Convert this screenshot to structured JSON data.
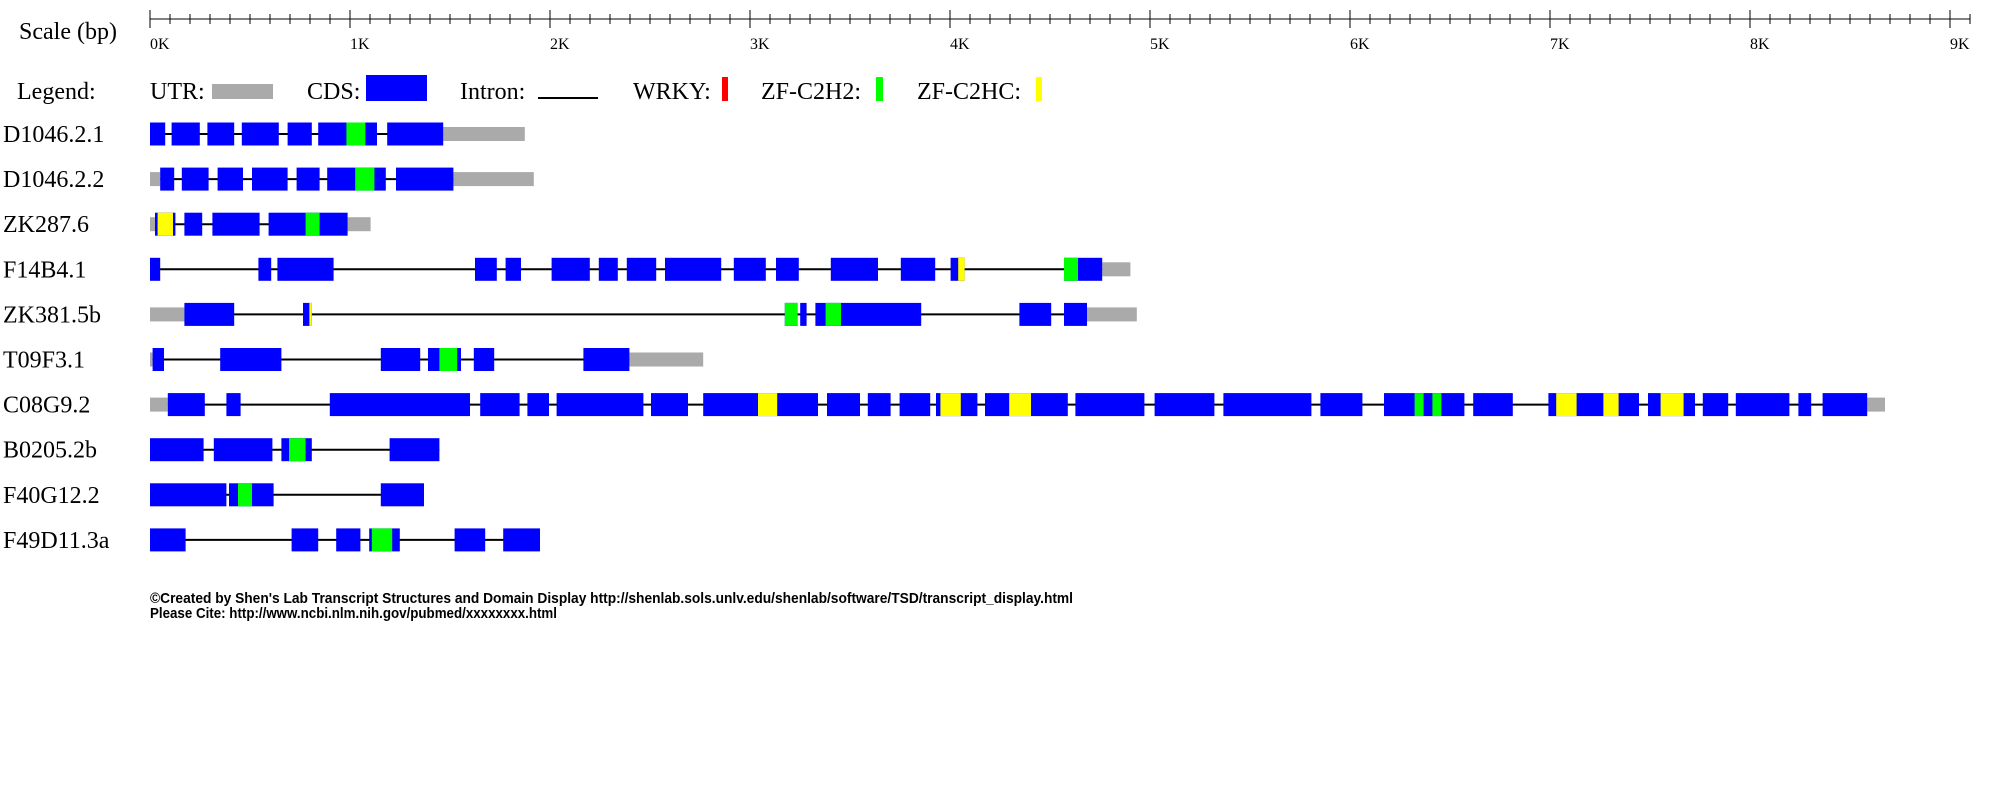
{
  "scale": {
    "label": "Scale (bp)",
    "xlim": [
      0,
      9100
    ],
    "minor_tick_step": 100,
    "ticks": [
      {
        "value": 0,
        "label": "0K"
      },
      {
        "value": 1000,
        "label": "1K"
      },
      {
        "value": 2000,
        "label": "2K"
      },
      {
        "value": 3000,
        "label": "3K"
      },
      {
        "value": 4000,
        "label": "4K"
      },
      {
        "value": 5000,
        "label": "5K"
      },
      {
        "value": 6000,
        "label": "6K"
      },
      {
        "value": 7000,
        "label": "7K"
      },
      {
        "value": 8000,
        "label": "8K"
      },
      {
        "value": 9000,
        "label": "9K"
      }
    ]
  },
  "legend": {
    "title": "Legend:",
    "items": [
      {
        "label": "UTR:",
        "color": "#aaaaaa",
        "shape": "box"
      },
      {
        "label": "CDS:",
        "color": "#0000ff",
        "shape": "box"
      },
      {
        "label": "Intron:",
        "color": "#000000",
        "shape": "line"
      },
      {
        "label": "WRKY:",
        "color": "#ff0000",
        "shape": "box"
      },
      {
        "label": "ZF-C2H2:",
        "color": "#00ff00",
        "shape": "box"
      },
      {
        "label": "ZF-C2HC:",
        "color": "#ffff00",
        "shape": "box"
      }
    ]
  },
  "transcripts": [
    {
      "name": "D1046.2.1",
      "utr": [
        [
          1466,
          1874
        ]
      ],
      "cds": [
        [
          0,
          76
        ],
        [
          108,
          249
        ],
        [
          287,
          421
        ],
        [
          459,
          644
        ],
        [
          688,
          809
        ],
        [
          841,
          1135
        ],
        [
          1186,
          1466
        ]
      ],
      "zf_c2h2": [
        [
          982,
          1077
        ]
      ]
    },
    {
      "name": "D1046.2.2",
      "utr": [
        [
          0,
          51
        ],
        [
          1517,
          1919
        ]
      ],
      "cds": [
        [
          51,
          121
        ],
        [
          159,
          293
        ],
        [
          338,
          465
        ],
        [
          510,
          688
        ],
        [
          733,
          848
        ],
        [
          886,
          1179
        ],
        [
          1230,
          1517
        ]
      ],
      "zf_c2h2": [
        [
          1026,
          1122
        ]
      ]
    },
    {
      "name": "ZK287.6",
      "utr": [
        [
          0,
          25
        ],
        [
          988,
          1103
        ]
      ],
      "cds": [
        [
          25,
          127
        ],
        [
          172,
          261
        ],
        [
          312,
          548
        ],
        [
          593,
          988
        ]
      ],
      "zf_c2h2": [
        [
          778,
          848
        ]
      ],
      "zf_c2hc": [
        [
          38,
          115
        ]
      ]
    },
    {
      "name": "F14B4.1",
      "utr": [
        [
          4761,
          4902
        ]
      ],
      "cds": [
        [
          0,
          51
        ],
        [
          542,
          606
        ],
        [
          637,
          918
        ],
        [
          1625,
          1734
        ],
        [
          1778,
          1855
        ],
        [
          2008,
          2199
        ],
        [
          2244,
          2339
        ],
        [
          2384,
          2531
        ],
        [
          2575,
          2856
        ],
        [
          2919,
          3079
        ],
        [
          3130,
          3244
        ],
        [
          3404,
          3640
        ],
        [
          3754,
          3926
        ],
        [
          4003,
          4073
        ],
        [
          4570,
          4761
        ]
      ],
      "zf_c2h2": [
        [
          4570,
          4640
        ]
      ],
      "zf_c2hc": [
        [
          4041,
          4073
        ]
      ]
    },
    {
      "name": "ZK381.5b",
      "utr": [
        [
          0,
          172
        ],
        [
          4685,
          4934
        ]
      ],
      "cds": [
        [
          172,
          421
        ],
        [
          765,
          809
        ],
        [
          3174,
          3238
        ],
        [
          3251,
          3283
        ],
        [
          3327,
          3856
        ],
        [
          4347,
          4506
        ],
        [
          4570,
          4685
        ]
      ],
      "zf_c2h2": [
        [
          3174,
          3238
        ],
        [
          3378,
          3455
        ]
      ],
      "zf_c2hc": [
        [
          797,
          809
        ]
      ]
    },
    {
      "name": "T09F3.1",
      "utr": [
        [
          0,
          13
        ],
        [
          2397,
          2766
        ]
      ],
      "cds": [
        [
          13,
          70
        ],
        [
          351,
          657
        ],
        [
          1154,
          1351
        ],
        [
          1390,
          1555
        ],
        [
          1619,
          1721
        ],
        [
          2167,
          2397
        ]
      ],
      "zf_c2h2": [
        [
          1447,
          1536
        ]
      ]
    },
    {
      "name": "C08G9.2",
      "utr": [
        [
          0,
          89
        ],
        [
          8586,
          8675
        ]
      ],
      "cds": [
        [
          89,
          274
        ],
        [
          382,
          453
        ],
        [
          899,
          1600
        ],
        [
          1651,
          1848
        ],
        [
          1887,
          1995
        ],
        [
          2033,
          2467
        ],
        [
          2505,
          2690
        ],
        [
          2766,
          3340
        ],
        [
          3385,
          3550
        ],
        [
          3589,
          3703
        ],
        [
          3748,
          3901
        ],
        [
          3930,
          4137
        ],
        [
          4175,
          4589
        ],
        [
          4627,
          4972
        ],
        [
          5023,
          5322
        ],
        [
          5367,
          5807
        ],
        [
          5852,
          6062
        ],
        [
          6170,
          6572
        ],
        [
          6616,
          6814
        ],
        [
          6992,
          7445
        ],
        [
          7490,
          7725
        ],
        [
          7764,
          7891
        ],
        [
          7929,
          8197
        ],
        [
          8242,
          8306
        ],
        [
          8363,
          8586
        ]
      ],
      "zf_c2h2": [
        [
          6323,
          6368
        ],
        [
          6412,
          6457
        ]
      ],
      "zf_c2hc": [
        [
          3040,
          3136
        ],
        [
          3952,
          4054
        ],
        [
          4296,
          4405
        ],
        [
          7031,
          7133
        ],
        [
          7267,
          7343
        ],
        [
          7553,
          7668
        ]
      ]
    },
    {
      "name": "B0205.2b",
      "cds": [
        [
          0,
          268
        ],
        [
          319,
          612
        ],
        [
          657,
          809
        ],
        [
          1198,
          1447
        ]
      ],
      "zf_c2h2": [
        [
          695,
          778
        ]
      ]
    },
    {
      "name": "F40G12.2",
      "cds": [
        [
          0,
          382
        ],
        [
          395,
          618
        ],
        [
          1154,
          1370
        ]
      ],
      "zf_c2h2": [
        [
          440,
          510
        ]
      ]
    },
    {
      "name": "F49D11.3a",
      "cds": [
        [
          0,
          178
        ],
        [
          708,
          841
        ],
        [
          931,
          1052
        ],
        [
          1096,
          1249
        ],
        [
          1523,
          1676
        ],
        [
          1766,
          1950
        ]
      ],
      "zf_c2h2": [
        [
          1109,
          1211
        ]
      ]
    }
  ],
  "footer": {
    "line1": "©Created by Shen's Lab Transcript Structures and Domain Display http://shenlab.sols.unlv.edu/shenlab/software/TSD/transcript_display.html",
    "line2": "Please Cite: http://www.ncbi.nlm.nih.gov/pubmed/xxxxxxxx.html"
  }
}
